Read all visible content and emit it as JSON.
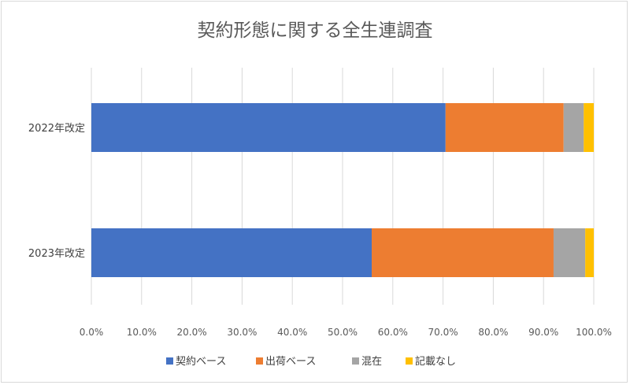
{
  "chart_data": {
    "type": "bar",
    "orientation": "horizontal",
    "stacked": true,
    "title": "契約形態に関する全生連調査",
    "categories": [
      "2022年改定",
      "2023年改定"
    ],
    "series": [
      {
        "name": "契約ベース",
        "color": "#4472C4",
        "values": [
          70.5,
          55.8
        ]
      },
      {
        "name": "出荷ベース",
        "color": "#ED7D31",
        "values": [
          23.5,
          36.2
        ]
      },
      {
        "name": "混在",
        "color": "#A5A5A5",
        "values": [
          4.0,
          6.3
        ]
      },
      {
        "name": "記載なし",
        "color": "#FFC000",
        "values": [
          2.0,
          1.7
        ]
      }
    ],
    "xlim": [
      0,
      100
    ],
    "x_ticks": [
      "0.0%",
      "10.0%",
      "20.0%",
      "30.0%",
      "40.0%",
      "50.0%",
      "60.0%",
      "70.0%",
      "80.0%",
      "90.0%",
      "100.0%"
    ],
    "grid": true,
    "legend": "bottom"
  }
}
